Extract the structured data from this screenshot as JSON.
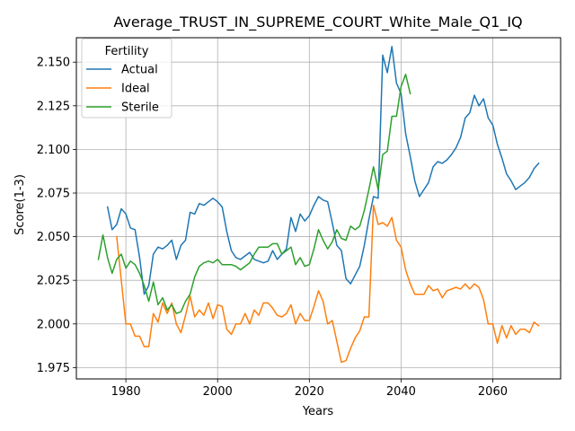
{
  "chart_data": {
    "type": "line",
    "title": "Average_TRUST_IN_SUPREME_COURT_White_Male_Q1_IQ",
    "xlabel": "Years",
    "ylabel": "Score(1-3)",
    "xlim": [
      1969.2,
      2074.8
    ],
    "ylim": [
      1.9685,
      2.164
    ],
    "xticks": [
      1980,
      2000,
      2020,
      2040,
      2060
    ],
    "xtick_labels": [
      "1980",
      "2000",
      "2020",
      "2040",
      "2060"
    ],
    "yticks": [
      1.975,
      2.0,
      2.025,
      2.05,
      2.075,
      2.1,
      2.125,
      2.15
    ],
    "ytick_labels": [
      "1.975",
      "2.000",
      "2.025",
      "2.050",
      "2.075",
      "2.100",
      "2.125",
      "2.150"
    ],
    "grid": true,
    "legend": {
      "title": "Fertility",
      "placement": "top-left"
    },
    "series": [
      {
        "name": "Actual",
        "color": "#1f77b4",
        "x": [
          1976,
          1977,
          1978,
          1979,
          1980,
          1981,
          1982,
          1983,
          1984,
          1985,
          1986,
          1987,
          1988,
          1989,
          1990,
          1991,
          1992,
          1993,
          1994,
          1995,
          1996,
          1997,
          1998,
          1999,
          2000,
          2001,
          2002,
          2003,
          2004,
          2005,
          2006,
          2007,
          2008,
          2009,
          2010,
          2011,
          2012,
          2013,
          2014,
          2015,
          2016,
          2017,
          2018,
          2019,
          2020,
          2021,
          2022,
          2023,
          2024,
          2025,
          2026,
          2027,
          2028,
          2029,
          2030,
          2031,
          2032,
          2033,
          2034,
          2035,
          2036,
          2037,
          2038,
          2039,
          2040,
          2041,
          2042,
          2043,
          2044,
          2045,
          2046,
          2047,
          2048,
          2049,
          2050,
          2051,
          2052,
          2053,
          2054,
          2055,
          2056,
          2057,
          2058,
          2059,
          2060,
          2061,
          2062,
          2063,
          2064,
          2065,
          2066,
          2067,
          2068,
          2069,
          2070
        ],
        "values": [
          2.067,
          2.054,
          2.057,
          2.066,
          2.063,
          2.055,
          2.054,
          2.038,
          2.017,
          2.022,
          2.04,
          2.044,
          2.043,
          2.045,
          2.048,
          2.037,
          2.045,
          2.048,
          2.064,
          2.063,
          2.069,
          2.068,
          2.07,
          2.072,
          2.07,
          2.067,
          2.053,
          2.042,
          2.038,
          2.037,
          2.039,
          2.041,
          2.037,
          2.036,
          2.035,
          2.036,
          2.042,
          2.037,
          2.04,
          2.043,
          2.061,
          2.053,
          2.063,
          2.059,
          2.062,
          2.068,
          2.073,
          2.071,
          2.07,
          2.058,
          2.045,
          2.042,
          2.026,
          2.023,
          2.028,
          2.033,
          2.045,
          2.06,
          2.073,
          2.072,
          2.154,
          2.144,
          2.159,
          2.138,
          2.132,
          2.109,
          2.096,
          2.082,
          2.073,
          2.077,
          2.081,
          2.09,
          2.093,
          2.092,
          2.094,
          2.097,
          2.101,
          2.107,
          2.118,
          2.121,
          2.131,
          2.125,
          2.129,
          2.118,
          2.114,
          2.103,
          2.095,
          2.086,
          2.082,
          2.077,
          2.079,
          2.081,
          2.084,
          2.089,
          2.092
        ]
      },
      {
        "name": "Ideal",
        "color": "#ff7f0e",
        "x": [
          1978,
          1979,
          1980,
          1981,
          1982,
          1983,
          1984,
          1985,
          1986,
          1987,
          1988,
          1989,
          1990,
          1991,
          1992,
          1993,
          1994,
          1995,
          1996,
          1997,
          1998,
          1999,
          2000,
          2001,
          2002,
          2003,
          2004,
          2005,
          2006,
          2007,
          2008,
          2009,
          2010,
          2011,
          2012,
          2013,
          2014,
          2015,
          2016,
          2017,
          2018,
          2019,
          2020,
          2021,
          2022,
          2023,
          2024,
          2025,
          2026,
          2027,
          2028,
          2029,
          2030,
          2031,
          2032,
          2033,
          2034,
          2035,
          2036,
          2037,
          2038,
          2039,
          2040,
          2041,
          2042,
          2043,
          2044,
          2045,
          2046,
          2047,
          2048,
          2049,
          2050,
          2051,
          2052,
          2053,
          2054,
          2055,
          2056,
          2057,
          2058,
          2059,
          2060,
          2061,
          2062,
          2063,
          2064,
          2065,
          2066,
          2067,
          2068,
          2069,
          2070
        ],
        "values": [
          2.05,
          2.025,
          2.0,
          2.0,
          1.993,
          1.993,
          1.987,
          1.987,
          2.006,
          2.001,
          2.012,
          2.006,
          2.012,
          2.0,
          1.995,
          2.005,
          2.016,
          2.004,
          2.008,
          2.005,
          2.012,
          2.003,
          2.011,
          2.01,
          1.997,
          1.994,
          2.0,
          2.0,
          2.006,
          2.0,
          2.008,
          2.005,
          2.012,
          2.012,
          2.009,
          2.005,
          2.004,
          2.006,
          2.011,
          2.0,
          2.006,
          2.002,
          2.002,
          2.01,
          2.019,
          2.013,
          2.0,
          2.002,
          1.99,
          1.978,
          1.979,
          1.986,
          1.992,
          1.996,
          2.004,
          2.004,
          2.068,
          2.057,
          2.058,
          2.056,
          2.061,
          2.048,
          2.044,
          2.031,
          2.023,
          2.017,
          2.017,
          2.017,
          2.022,
          2.019,
          2.02,
          2.015,
          2.019,
          2.02,
          2.021,
          2.02,
          2.023,
          2.02,
          2.023,
          2.021,
          2.014,
          2.0,
          2.0,
          1.989,
          1.999,
          1.992,
          1.999,
          1.994,
          1.997,
          1.997,
          1.995,
          2.001,
          1.999
        ]
      },
      {
        "name": "Sterile",
        "color": "#2ca02c",
        "x": [
          1974,
          1975,
          1976,
          1977,
          1978,
          1979,
          1980,
          1981,
          1982,
          1983,
          1984,
          1985,
          1986,
          1987,
          1988,
          1989,
          1990,
          1991,
          1992,
          1993,
          1994,
          1995,
          1996,
          1997,
          1998,
          1999,
          2000,
          2001,
          2002,
          2003,
          2004,
          2005,
          2006,
          2007,
          2008,
          2009,
          2010,
          2011,
          2012,
          2013,
          2014,
          2015,
          2016,
          2017,
          2018,
          2019,
          2020,
          2021,
          2022,
          2023,
          2024,
          2025,
          2026,
          2027,
          2028,
          2029,
          2030,
          2031,
          2032,
          2033,
          2034,
          2035,
          2036,
          2037,
          2038,
          2039,
          2040,
          2041,
          2042
        ],
        "values": [
          2.037,
          2.051,
          2.038,
          2.029,
          2.037,
          2.04,
          2.032,
          2.036,
          2.034,
          2.029,
          2.022,
          2.013,
          2.024,
          2.011,
          2.015,
          2.008,
          2.011,
          2.006,
          2.007,
          2.013,
          2.017,
          2.027,
          2.033,
          2.035,
          2.036,
          2.035,
          2.037,
          2.034,
          2.034,
          2.034,
          2.033,
          2.031,
          2.033,
          2.035,
          2.04,
          2.044,
          2.044,
          2.044,
          2.046,
          2.046,
          2.04,
          2.042,
          2.044,
          2.034,
          2.038,
          2.033,
          2.034,
          2.043,
          2.054,
          2.048,
          2.043,
          2.047,
          2.054,
          2.049,
          2.048,
          2.056,
          2.054,
          2.056,
          2.065,
          2.077,
          2.09,
          2.077,
          2.097,
          2.099,
          2.119,
          2.119,
          2.136,
          2.143,
          2.132
        ]
      }
    ]
  }
}
